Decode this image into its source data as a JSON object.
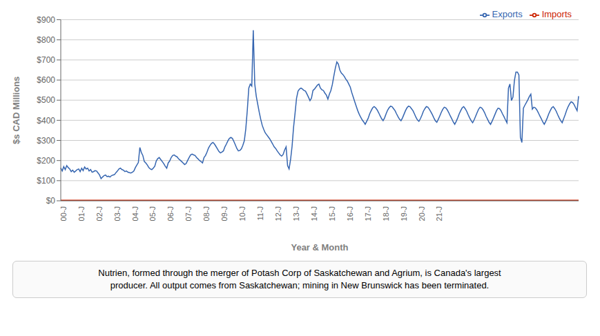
{
  "chart_data": {
    "type": "line",
    "xlabel": "Year & Month",
    "ylabel": "$s CAD Millions",
    "annotation": "Nutrien, formed through the merger of Potash Corp of Saskatchewan and Agrium, is Canada's largest\nproducer. All output comes from Saskatchewan; mining in New Brunswick has been terminated.",
    "ylim": [
      0,
      900
    ],
    "yticks": [
      {
        "value": 0,
        "label": "$0"
      },
      {
        "value": 100,
        "label": "$100"
      },
      {
        "value": 200,
        "label": "$200"
      },
      {
        "value": 300,
        "label": "$300"
      },
      {
        "value": 400,
        "label": "$400"
      },
      {
        "value": 500,
        "label": "$500"
      },
      {
        "value": 600,
        "label": "$600"
      },
      {
        "value": 700,
        "label": "$700"
      },
      {
        "value": 800,
        "label": "$800"
      },
      {
        "value": 900,
        "label": "$900"
      }
    ],
    "grid": true,
    "legend": "upper right",
    "categories": [
      "00-J",
      null,
      null,
      null,
      null,
      null,
      null,
      null,
      null,
      null,
      null,
      null,
      "01-J",
      null,
      null,
      null,
      null,
      null,
      null,
      null,
      null,
      null,
      null,
      null,
      "02-J",
      null,
      null,
      null,
      null,
      null,
      null,
      null,
      null,
      null,
      null,
      null,
      "03-J",
      null,
      null,
      null,
      null,
      null,
      null,
      null,
      null,
      null,
      null,
      null,
      "04-J",
      null,
      null,
      null,
      null,
      null,
      null,
      null,
      null,
      null,
      null,
      null,
      "05-J",
      null,
      null,
      null,
      null,
      null,
      null,
      null,
      null,
      null,
      null,
      null,
      "06-J",
      null,
      null,
      null,
      null,
      null,
      null,
      null,
      null,
      null,
      null,
      null,
      "07-J",
      null,
      null,
      null,
      null,
      null,
      null,
      null,
      null,
      null,
      null,
      null,
      "08-J",
      null,
      null,
      null,
      null,
      null,
      null,
      null,
      null,
      null,
      null,
      null,
      "09-J",
      null,
      null,
      null,
      null,
      null,
      null,
      null,
      null,
      null,
      null,
      null,
      "10-J",
      null,
      null,
      null,
      null,
      null,
      null,
      null,
      null,
      null,
      null,
      null,
      "11-J",
      null,
      null,
      null,
      null,
      null,
      null,
      null,
      null,
      null,
      null,
      null,
      "12-J",
      null,
      null,
      null,
      null,
      null,
      null,
      null,
      null,
      null,
      null,
      null,
      "13-J",
      null,
      null,
      null,
      null,
      null,
      null,
      null,
      null,
      null,
      null,
      null,
      "14-J",
      null,
      null,
      null,
      null,
      null,
      null,
      null,
      null,
      null,
      null,
      null,
      "15-J",
      null,
      null,
      null,
      null,
      null,
      null,
      null,
      null,
      null,
      null,
      null,
      "16-J",
      null,
      null,
      null,
      null,
      null,
      null,
      null,
      null,
      null,
      null,
      null,
      "17-J",
      null,
      null,
      null,
      null,
      null,
      null,
      null,
      null,
      null,
      null,
      null,
      "18-J",
      null,
      null,
      null,
      null,
      null,
      null,
      null,
      null,
      null,
      null,
      null,
      "19-J",
      null,
      null,
      null,
      null,
      null,
      null,
      null,
      null,
      null,
      null,
      null,
      "20-J",
      null,
      null,
      null,
      null,
      null,
      null,
      null,
      null,
      null,
      null,
      null,
      "21-J",
      null,
      null,
      null,
      null,
      null,
      null,
      null,
      null,
      null,
      null,
      null,
      null,
      null,
      null,
      null,
      null,
      null,
      null,
      null,
      null,
      null,
      null,
      null,
      null,
      null,
      null,
      null,
      null,
      null,
      null,
      null,
      null,
      null,
      null,
      null,
      null,
      null,
      null,
      null,
      null,
      null,
      null,
      null,
      null,
      null,
      null,
      null,
      null,
      null,
      null,
      null,
      null,
      null,
      null,
      null,
      null,
      null,
      null,
      null,
      null,
      null,
      null,
      null,
      null,
      null,
      null,
      null,
      null,
      null,
      null,
      null,
      null,
      null,
      null,
      null,
      null,
      null,
      null,
      null,
      null,
      null,
      null,
      null,
      null,
      null,
      null,
      null,
      null,
      null,
      null,
      null,
      null,
      null,
      null,
      null
    ],
    "series": [
      {
        "name": "Exports",
        "color": "#3565B0",
        "values": [
          163,
          148,
          170,
          155,
          175,
          165,
          158,
          145,
          152,
          142,
          148,
          155,
          158,
          145,
          162,
          150,
          168,
          158,
          162,
          148,
          155,
          142,
          145,
          150,
          148,
          138,
          128,
          110,
          118,
          125,
          128,
          120,
          122,
          118,
          125,
          128,
          130,
          140,
          148,
          158,
          162,
          155,
          152,
          145,
          148,
          142,
          140,
          138,
          142,
          148,
          165,
          178,
          190,
          265,
          240,
          225,
          195,
          188,
          178,
          165,
          158,
          155,
          162,
          172,
          198,
          210,
          215,
          205,
          195,
          185,
          172,
          162,
          188,
          198,
          215,
          225,
          228,
          222,
          218,
          208,
          202,
          195,
          188,
          180,
          185,
          200,
          215,
          228,
          232,
          228,
          225,
          215,
          208,
          200,
          195,
          188,
          215,
          225,
          242,
          262,
          275,
          285,
          290,
          282,
          270,
          258,
          245,
          238,
          242,
          248,
          268,
          282,
          298,
          310,
          315,
          310,
          295,
          278,
          260,
          248,
          250,
          258,
          275,
          298,
          358,
          450,
          560,
          580,
          570,
          848,
          580,
          520,
          480,
          440,
          405,
          375,
          355,
          338,
          328,
          318,
          308,
          295,
          282,
          268,
          260,
          248,
          238,
          228,
          222,
          230,
          252,
          268,
          175,
          158,
          205,
          270,
          365,
          435,
          510,
          545,
          555,
          560,
          555,
          548,
          545,
          530,
          515,
          498,
          510,
          548,
          555,
          565,
          575,
          580,
          560,
          552,
          548,
          535,
          525,
          505,
          530,
          548,
          578,
          620,
          660,
          690,
          680,
          650,
          635,
          628,
          618,
          605,
          595,
          580,
          565,
          538,
          515,
          492,
          470,
          448,
          430,
          415,
          402,
          392,
          380,
          395,
          410,
          432,
          448,
          462,
          468,
          462,
          452,
          438,
          422,
          408,
          398,
          412,
          432,
          450,
          462,
          470,
          468,
          458,
          448,
          432,
          418,
          405,
          398,
          412,
          430,
          448,
          462,
          470,
          468,
          458,
          448,
          432,
          415,
          402,
          395,
          408,
          425,
          445,
          458,
          468,
          465,
          455,
          442,
          428,
          412,
          398,
          390,
          405,
          422,
          440,
          455,
          465,
          462,
          452,
          438,
          422,
          408,
          392,
          380,
          395,
          412,
          432,
          448,
          462,
          468,
          458,
          445,
          428,
          412,
          398,
          388,
          402,
          420,
          438,
          455,
          465,
          462,
          452,
          438,
          420,
          405,
          390,
          380,
          395,
          412,
          430,
          448,
          460,
          458,
          448,
          432,
          418,
          402,
          388,
          560,
          580,
          498,
          515,
          598,
          640,
          640,
          625,
          315,
          290,
          460,
          475,
          488,
          502,
          518,
          530,
          455,
          465,
          462,
          452,
          438,
          422,
          408,
          392,
          380,
          395,
          412,
          432,
          448,
          462,
          468,
          458,
          445,
          428,
          412,
          398,
          388,
          408,
          428,
          450,
          468,
          482,
          492,
          488,
          478,
          462,
          448,
          520
        ]
      },
      {
        "name": "Imports",
        "color": "#CC2200",
        "values": [
          3,
          3,
          3,
          3,
          3,
          3,
          3,
          3,
          3,
          3,
          3,
          3,
          3,
          3,
          3,
          3,
          3,
          3,
          3,
          3,
          3,
          3,
          3,
          3,
          3,
          3,
          3,
          3,
          3,
          3,
          3,
          3,
          3,
          3,
          3,
          3,
          3,
          3,
          3,
          3,
          3,
          3,
          3,
          3,
          3,
          3,
          3,
          3,
          3,
          3,
          3,
          3,
          3,
          3,
          3,
          3,
          3,
          3,
          3,
          3,
          3,
          3,
          3,
          3,
          3,
          3,
          3,
          3,
          3,
          3,
          3,
          3,
          3,
          3,
          3,
          3,
          3,
          3,
          3,
          3,
          3,
          3,
          3,
          3,
          3,
          3,
          3,
          3,
          3,
          3,
          3,
          3,
          3,
          3,
          3,
          3,
          3,
          3,
          3,
          3,
          3,
          3,
          3,
          3,
          3,
          3,
          3,
          3,
          3,
          3,
          3,
          3,
          3,
          3,
          3,
          3,
          3,
          3,
          3,
          3,
          3,
          3,
          3,
          3,
          3,
          3,
          3,
          3,
          3,
          3,
          3,
          3,
          3,
          3,
          3,
          3,
          3,
          3,
          3,
          3,
          3,
          3,
          3,
          3,
          3,
          3,
          3,
          3,
          3,
          3,
          3,
          3,
          3,
          3,
          3,
          3,
          3,
          3,
          3,
          3,
          3,
          3,
          3,
          3,
          3,
          3,
          3,
          3,
          3,
          3,
          3,
          3,
          3,
          3,
          3,
          3,
          3,
          3,
          3,
          3,
          3,
          3,
          3,
          3,
          3,
          3,
          3,
          3,
          3,
          3,
          3,
          3,
          3,
          3,
          3,
          3,
          3,
          3,
          3,
          3,
          3,
          3,
          3,
          3,
          3,
          3,
          3,
          3,
          3,
          3,
          3,
          3,
          3,
          3,
          3,
          3,
          3,
          3,
          3,
          3,
          3,
          3,
          3,
          3,
          3,
          3,
          3,
          3,
          3,
          3,
          3,
          3,
          3,
          3,
          3,
          3,
          3,
          3,
          3,
          3,
          3,
          3,
          3,
          3,
          3,
          3,
          3,
          3,
          3,
          3,
          3,
          3,
          3,
          3,
          3,
          3,
          3,
          3,
          3,
          3,
          3,
          3,
          3,
          3,
          3,
          3,
          3,
          3,
          3,
          3,
          3,
          3,
          3,
          3,
          3,
          3,
          3,
          3,
          3,
          3,
          3,
          3,
          3,
          3,
          3,
          3,
          3,
          3,
          3,
          3,
          3,
          3,
          3,
          3,
          3,
          3,
          3,
          3,
          3,
          3,
          3,
          3,
          3,
          3,
          3,
          3,
          3,
          3,
          3,
          3,
          3,
          3,
          3,
          3,
          3,
          3,
          3,
          3,
          3,
          3,
          3,
          3,
          3,
          3,
          3,
          3,
          3,
          3,
          3,
          3,
          3,
          3,
          3,
          3,
          3,
          3,
          3,
          3,
          3,
          3,
          3,
          3,
          3,
          3,
          3,
          3,
          3,
          3
        ]
      }
    ]
  }
}
